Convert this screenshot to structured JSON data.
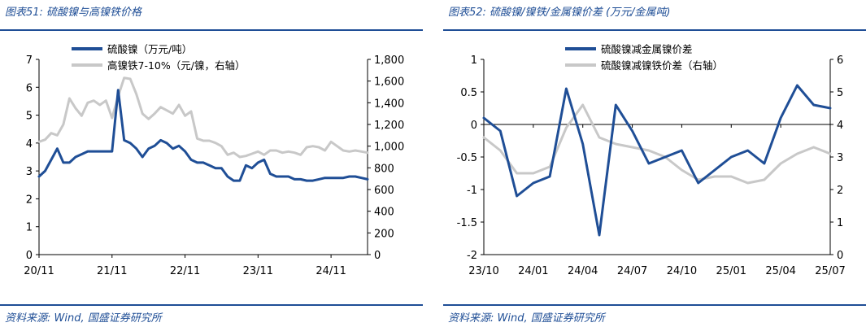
{
  "left": {
    "figure_title": "图表51: 硫酸镍与高镍铁价格",
    "source": "资料来源: Wind, 国盛证券研究所"
  },
  "right": {
    "figure_title": "图表52: 硫酸镍/镍铁/金属镍价差 (万元/金属吨)",
    "source": "资料来源: Wind, 国盛证券研究所"
  },
  "colors": {
    "primary": "#1f4e96",
    "secondary": "#c8c8c8"
  },
  "chart_data": [
    {
      "type": "line",
      "legend_position": "top-center",
      "x_ticks": [
        "20/11",
        "21/11",
        "22/11",
        "23/11",
        "24/11"
      ],
      "y_left": {
        "range": [
          0,
          7
        ],
        "ticks": [
          "0",
          "1",
          "2",
          "3",
          "4",
          "5",
          "6",
          "7"
        ]
      },
      "y_right": {
        "range": [
          0,
          1800
        ],
        "ticks": [
          "0",
          "200",
          "400",
          "600",
          "800",
          "1,000",
          "1,200",
          "1,400",
          "1,600",
          "1,800"
        ]
      },
      "series": [
        {
          "name": "硫酸镍（万元/吨）",
          "axis": "left",
          "color": "#1f4e96",
          "x": [
            "20/11",
            "20/12",
            "21/01",
            "21/02",
            "21/03",
            "21/04",
            "21/05",
            "21/06",
            "21/07",
            "21/08",
            "21/09",
            "21/10",
            "21/11",
            "21/12",
            "22/01",
            "22/02",
            "22/03",
            "22/04",
            "22/05",
            "22/06",
            "22/07",
            "22/08",
            "22/09",
            "22/10",
            "22/11",
            "22/12",
            "23/01",
            "23/02",
            "23/03",
            "23/04",
            "23/05",
            "23/06",
            "23/07",
            "23/08",
            "23/09",
            "23/10",
            "23/11",
            "23/12",
            "24/01",
            "24/02",
            "24/03",
            "24/04",
            "24/05",
            "24/06",
            "24/07",
            "24/08",
            "24/09",
            "24/10",
            "24/11",
            "24/12",
            "25/01",
            "25/02",
            "25/03",
            "25/04",
            "25/05"
          ],
          "values": [
            2.8,
            3.0,
            3.4,
            3.8,
            3.3,
            3.3,
            3.5,
            3.6,
            3.7,
            3.7,
            3.7,
            3.7,
            3.7,
            5.9,
            4.1,
            4.0,
            3.8,
            3.5,
            3.8,
            3.9,
            4.1,
            4.0,
            3.8,
            3.9,
            3.7,
            3.4,
            3.3,
            3.3,
            3.2,
            3.1,
            3.1,
            2.8,
            2.65,
            2.65,
            3.2,
            3.1,
            3.3,
            3.4,
            2.9,
            2.8,
            2.8,
            2.8,
            2.7,
            2.7,
            2.65,
            2.65,
            2.7,
            2.75,
            2.75,
            2.75,
            2.75,
            2.8,
            2.8,
            2.75,
            2.7
          ]
        },
        {
          "name": "高镍铁7-10%（元/镍，右轴）",
          "axis": "right",
          "color": "#c8c8c8",
          "x": [
            "20/11",
            "20/12",
            "21/01",
            "21/02",
            "21/03",
            "21/04",
            "21/05",
            "21/06",
            "21/07",
            "21/08",
            "21/09",
            "21/10",
            "21/11",
            "21/12",
            "22/01",
            "22/02",
            "22/03",
            "22/04",
            "22/05",
            "22/06",
            "22/07",
            "22/08",
            "22/09",
            "22/10",
            "22/11",
            "22/12",
            "23/01",
            "23/02",
            "23/03",
            "23/04",
            "23/05",
            "23/06",
            "23/07",
            "23/08",
            "23/09",
            "23/10",
            "23/11",
            "23/12",
            "24/01",
            "24/02",
            "24/03",
            "24/04",
            "24/05",
            "24/06",
            "24/07",
            "24/08",
            "24/09",
            "24/10",
            "24/11",
            "24/12",
            "25/01",
            "25/02",
            "25/03",
            "25/04",
            "25/05"
          ],
          "values": [
            1040,
            1060,
            1120,
            1100,
            1200,
            1440,
            1350,
            1280,
            1400,
            1420,
            1380,
            1420,
            1260,
            1460,
            1630,
            1620,
            1480,
            1300,
            1250,
            1300,
            1360,
            1330,
            1300,
            1380,
            1280,
            1320,
            1070,
            1050,
            1050,
            1030,
            1000,
            920,
            940,
            900,
            910,
            930,
            950,
            920,
            960,
            960,
            940,
            950,
            940,
            920,
            990,
            1000,
            990,
            960,
            1040,
            1000,
            960,
            950,
            960,
            950,
            940
          ]
        }
      ]
    },
    {
      "type": "line",
      "legend_position": "top-center",
      "x_ticks": [
        "23/10",
        "24/01",
        "24/04",
        "24/07",
        "24/10",
        "25/01",
        "25/04",
        "25/07"
      ],
      "y_left": {
        "range": [
          -2,
          1
        ],
        "ticks": [
          "-2",
          "-1.5",
          "-1",
          "-0.5",
          "0",
          "0.5",
          "1"
        ]
      },
      "y_right": {
        "range": [
          0,
          6
        ],
        "ticks": [
          "0",
          "1",
          "2",
          "3",
          "4",
          "5",
          "6"
        ]
      },
      "series": [
        {
          "name": "硫酸镍减金属镍价差",
          "axis": "left",
          "color": "#1f4e96",
          "x": [
            "23/10",
            "23/11",
            "23/12",
            "24/01",
            "24/02",
            "24/03",
            "24/04",
            "24/05",
            "24/06",
            "24/07",
            "24/08",
            "24/09",
            "24/10",
            "24/11",
            "24/12",
            "25/01",
            "25/02",
            "25/03",
            "25/04",
            "25/05",
            "25/06",
            "25/07"
          ],
          "values": [
            0.1,
            -0.1,
            -1.1,
            -0.9,
            -0.8,
            0.55,
            -0.3,
            -1.7,
            0.3,
            -0.1,
            -0.6,
            -0.5,
            -0.4,
            -0.9,
            -0.7,
            -0.5,
            -0.4,
            -0.6,
            0.1,
            0.6,
            0.3,
            0.25
          ]
        },
        {
          "name": "硫酸镍减镍铁价差（右轴）",
          "axis": "right",
          "color": "#c8c8c8",
          "x": [
            "23/10",
            "23/11",
            "23/12",
            "24/01",
            "24/02",
            "24/03",
            "24/04",
            "24/05",
            "24/06",
            "24/07",
            "24/08",
            "24/09",
            "24/10",
            "24/11",
            "24/12",
            "25/01",
            "25/02",
            "25/03",
            "25/04",
            "25/05",
            "25/06",
            "25/07"
          ],
          "values": [
            3.6,
            3.2,
            2.5,
            2.5,
            2.7,
            3.9,
            4.6,
            3.6,
            3.4,
            3.3,
            3.2,
            3.0,
            2.6,
            2.3,
            2.4,
            2.4,
            2.2,
            2.3,
            2.8,
            3.1,
            3.3,
            3.1
          ]
        }
      ]
    }
  ]
}
